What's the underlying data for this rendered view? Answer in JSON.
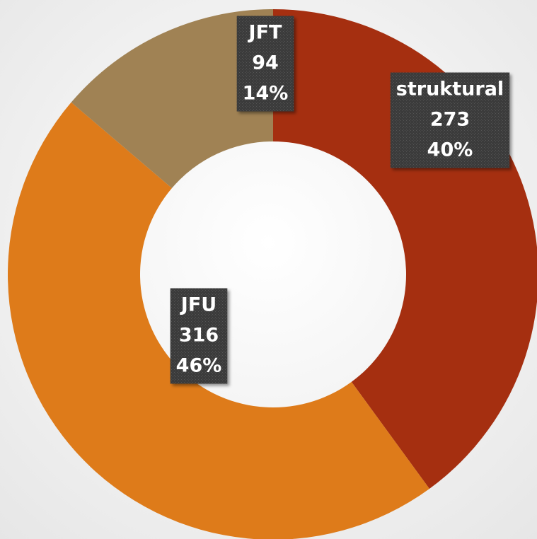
{
  "chart_data": {
    "type": "donut",
    "categories": [
      "struktural",
      "JFU",
      "JFT"
    ],
    "values": [
      273,
      316,
      94
    ],
    "percentages": [
      40,
      46,
      14
    ],
    "percentage_labels": [
      "40%",
      "46%",
      "14%"
    ],
    "colors": [
      "#a52f10",
      "#de7b1a",
      "#a08254"
    ]
  }
}
